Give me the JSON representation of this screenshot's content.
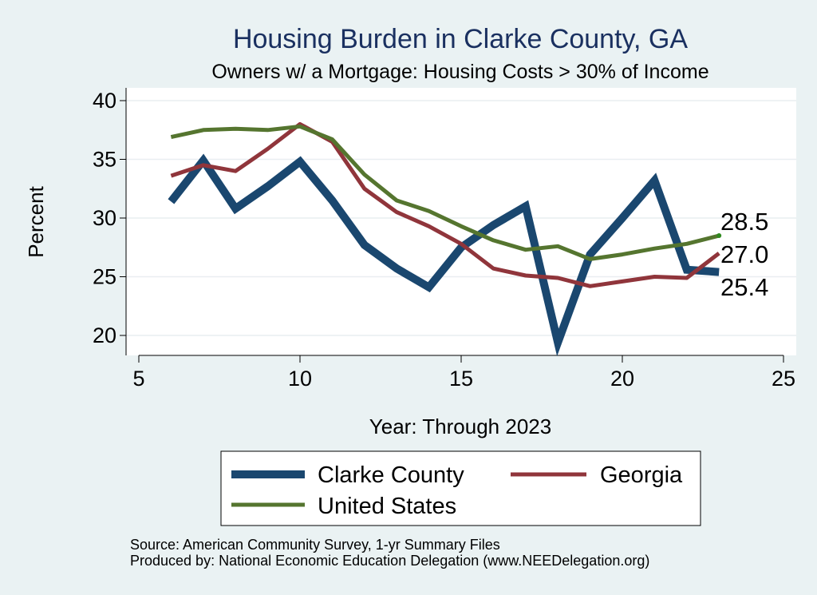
{
  "chart_data": {
    "type": "line",
    "title": "Housing Burden in Clarke County, GA",
    "subtitle": "Owners w/ a Mortgage: Housing Costs > 30% of Income",
    "xlabel": "Year: Through 2023",
    "ylabel": "Percent",
    "xlim": [
      5,
      25
    ],
    "ylim": [
      18.5,
      40.8
    ],
    "x_ticks": [
      5,
      10,
      15,
      20,
      25
    ],
    "y_ticks": [
      20,
      25,
      30,
      35,
      40
    ],
    "grid": true,
    "legend_position": "bottom",
    "series": [
      {
        "name": "Clarke County",
        "color": "#1a476f",
        "x": [
          6,
          7,
          8,
          9,
          10,
          11,
          12,
          13,
          14,
          15,
          16,
          17,
          18,
          19,
          20,
          21,
          22,
          23
        ],
        "values": [
          31.4,
          34.9,
          30.8,
          32.7,
          34.8,
          31.5,
          27.7,
          25.7,
          24.1,
          27.5,
          29.4,
          31.0,
          19.4,
          26.9,
          30.0,
          33.2,
          25.6,
          25.4
        ],
        "end_label": "25.4"
      },
      {
        "name": "Georgia",
        "color": "#90353b",
        "x": [
          6,
          7,
          8,
          9,
          10,
          11,
          12,
          13,
          14,
          15,
          16,
          17,
          18,
          19,
          20,
          21,
          22,
          23
        ],
        "values": [
          33.6,
          34.5,
          34.0,
          35.9,
          38.0,
          36.5,
          32.5,
          30.5,
          29.3,
          27.8,
          25.7,
          25.1,
          24.9,
          24.2,
          24.6,
          25.0,
          24.9,
          27.0
        ],
        "end_label": "27.0"
      },
      {
        "name": "United States",
        "color": "#55752f",
        "x": [
          6,
          7,
          8,
          9,
          10,
          11,
          12,
          13,
          14,
          15,
          16,
          17,
          18,
          19,
          20,
          21,
          22,
          23
        ],
        "values": [
          36.9,
          37.5,
          37.6,
          37.5,
          37.8,
          36.7,
          33.7,
          31.5,
          30.6,
          29.3,
          28.1,
          27.3,
          27.6,
          26.5,
          26.9,
          27.4,
          27.8,
          28.5
        ],
        "end_label": "28.5"
      }
    ],
    "notes": [
      "Source: American Community Survey, 1-yr Summary Files",
      "Produced by: National Economic Education Delegation (www.NEEDelegation.org)"
    ]
  }
}
